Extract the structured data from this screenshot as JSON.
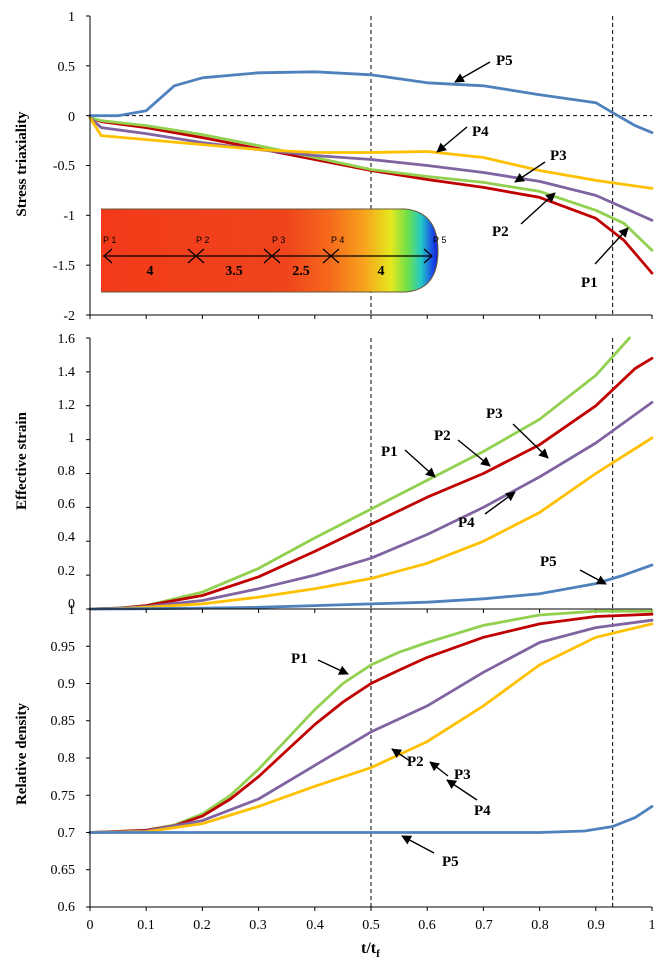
{
  "chart_data": [
    {
      "type": "line",
      "ylabel": "Stress triaxiality",
      "xlabel": "",
      "xlim": [
        0,
        1
      ],
      "ylim": [
        -2,
        1
      ],
      "yticks": [
        "1",
        "0.5",
        "0",
        "-0.5",
        "-1",
        "-1.5",
        "-2"
      ],
      "ref_lines": {
        "horizontal": [
          0
        ],
        "vertical": [
          0.5,
          0.93
        ]
      },
      "series": [
        {
          "name": "P1",
          "color": "#C00000",
          "x": [
            0,
            0.02,
            0.1,
            0.2,
            0.3,
            0.4,
            0.5,
            0.6,
            0.7,
            0.8,
            0.9,
            0.95,
            1.0
          ],
          "y": [
            -0.02,
            -0.06,
            -0.12,
            -0.22,
            -0.33,
            -0.44,
            -0.55,
            -0.64,
            -0.72,
            -0.82,
            -1.03,
            -1.25,
            -1.58
          ]
        },
        {
          "name": "P2",
          "color": "#92D050",
          "x": [
            0,
            0.02,
            0.1,
            0.2,
            0.3,
            0.4,
            0.5,
            0.6,
            0.7,
            0.8,
            0.9,
            0.95,
            1.0
          ],
          "y": [
            -0.02,
            -0.05,
            -0.1,
            -0.19,
            -0.3,
            -0.42,
            -0.54,
            -0.61,
            -0.67,
            -0.76,
            -0.95,
            -1.08,
            -1.35
          ]
        },
        {
          "name": "P3",
          "color": "#8064A2",
          "x": [
            0,
            0.02,
            0.1,
            0.2,
            0.3,
            0.4,
            0.5,
            0.6,
            0.7,
            0.8,
            0.9,
            1.0
          ],
          "y": [
            -0.02,
            -0.12,
            -0.18,
            -0.27,
            -0.34,
            -0.4,
            -0.44,
            -0.5,
            -0.57,
            -0.66,
            -0.8,
            -1.05
          ]
        },
        {
          "name": "P4",
          "color": "#FFC000",
          "x": [
            0,
            0.02,
            0.1,
            0.2,
            0.3,
            0.4,
            0.5,
            0.6,
            0.7,
            0.8,
            0.9,
            1.0
          ],
          "y": [
            -0.02,
            -0.2,
            -0.24,
            -0.29,
            -0.34,
            -0.37,
            -0.37,
            -0.36,
            -0.42,
            -0.55,
            -0.65,
            -0.73
          ]
        },
        {
          "name": "P5",
          "color": "#4F81BD",
          "x": [
            0,
            0.05,
            0.1,
            0.15,
            0.2,
            0.3,
            0.4,
            0.5,
            0.6,
            0.7,
            0.8,
            0.9,
            0.93,
            0.97,
            1.0
          ],
          "y": [
            0,
            0,
            0.05,
            0.3,
            0.38,
            0.43,
            0.44,
            0.41,
            0.33,
            0.3,
            0.21,
            0.13,
            0.03,
            -0.1,
            -0.17
          ]
        }
      ],
      "annotations": [
        "P5",
        "P4",
        "P3",
        "P2",
        "P1"
      ],
      "inset": {
        "points": [
          "P 1",
          "P 2",
          "P 3",
          "P 4",
          "P 5"
        ],
        "segments": [
          "4",
          "3.5",
          "2.5",
          "4"
        ]
      }
    },
    {
      "type": "line",
      "ylabel": "Effective strain",
      "xlabel": "",
      "xlim": [
        0,
        1
      ],
      "ylim": [
        0,
        1.6
      ],
      "yticks": [
        "1.6",
        "1.4",
        "1.2",
        "1",
        "0.8",
        "0.6",
        "0.4",
        "0.2",
        "0"
      ],
      "ref_lines": {
        "horizontal": [],
        "vertical": [
          0.5,
          0.93
        ]
      },
      "series": [
        {
          "name": "P2",
          "color": "#92D050",
          "x": [
            0,
            0.05,
            0.1,
            0.2,
            0.3,
            0.4,
            0.5,
            0.6,
            0.7,
            0.8,
            0.9,
            0.96
          ],
          "y": [
            0,
            0.005,
            0.02,
            0.1,
            0.24,
            0.42,
            0.59,
            0.76,
            0.93,
            1.12,
            1.38,
            1.6
          ]
        },
        {
          "name": "P1",
          "color": "#C00000",
          "x": [
            0,
            0.05,
            0.1,
            0.2,
            0.3,
            0.4,
            0.5,
            0.6,
            0.7,
            0.8,
            0.9,
            0.97,
            1.0
          ],
          "y": [
            0,
            0.005,
            0.02,
            0.08,
            0.19,
            0.34,
            0.5,
            0.66,
            0.8,
            0.97,
            1.2,
            1.42,
            1.48
          ]
        },
        {
          "name": "P3",
          "color": "#8064A2",
          "x": [
            0,
            0.05,
            0.1,
            0.2,
            0.3,
            0.4,
            0.5,
            0.6,
            0.7,
            0.8,
            0.9,
            1.0
          ],
          "y": [
            0,
            0.004,
            0.015,
            0.05,
            0.12,
            0.2,
            0.3,
            0.44,
            0.6,
            0.78,
            0.98,
            1.22
          ]
        },
        {
          "name": "P4",
          "color": "#FFC000",
          "x": [
            0,
            0.05,
            0.1,
            0.2,
            0.3,
            0.4,
            0.5,
            0.6,
            0.7,
            0.8,
            0.9,
            1.0
          ],
          "y": [
            0,
            0.003,
            0.01,
            0.03,
            0.07,
            0.12,
            0.18,
            0.27,
            0.4,
            0.57,
            0.8,
            1.01
          ]
        },
        {
          "name": "P5",
          "color": "#4F81BD",
          "x": [
            0,
            0.1,
            0.2,
            0.3,
            0.4,
            0.5,
            0.6,
            0.7,
            0.8,
            0.9,
            0.95,
            1.0
          ],
          "y": [
            0,
            0.002,
            0.005,
            0.01,
            0.02,
            0.03,
            0.04,
            0.06,
            0.09,
            0.15,
            0.2,
            0.26
          ]
        }
      ],
      "annotations": [
        "P1",
        "P2",
        "P3",
        "P4",
        "P5"
      ]
    },
    {
      "type": "line",
      "ylabel": "Relative density",
      "xlabel": "t/t",
      "xlabel_sub": "f",
      "xlim": [
        0,
        1
      ],
      "ylim": [
        0.6,
        1
      ],
      "xticks": [
        "0",
        "0.1",
        "0.2",
        "0.3",
        "0.4",
        "0.5",
        "0.6",
        "0.7",
        "0.8",
        "0.9",
        "1"
      ],
      "yticks": [
        "1",
        "0.95",
        "0.9",
        "0.85",
        "0.8",
        "0.75",
        "0.7",
        "0.65",
        "0.6"
      ],
      "ref_lines": {
        "horizontal": [
          1.0
        ],
        "vertical": [
          0.5,
          0.93
        ]
      },
      "series": [
        {
          "name": "P2",
          "color": "#92D050",
          "x": [
            0,
            0.1,
            0.15,
            0.2,
            0.25,
            0.3,
            0.35,
            0.4,
            0.45,
            0.5,
            0.55,
            0.6,
            0.7,
            0.8,
            0.9,
            1.0
          ],
          "y": [
            0.7,
            0.703,
            0.71,
            0.725,
            0.75,
            0.785,
            0.825,
            0.865,
            0.9,
            0.925,
            0.942,
            0.955,
            0.978,
            0.992,
            0.997,
            0.997
          ]
        },
        {
          "name": "P1",
          "color": "#C00000",
          "x": [
            0,
            0.1,
            0.15,
            0.2,
            0.25,
            0.3,
            0.35,
            0.4,
            0.45,
            0.5,
            0.55,
            0.6,
            0.7,
            0.8,
            0.9,
            1.0
          ],
          "y": [
            0.7,
            0.703,
            0.709,
            0.722,
            0.745,
            0.775,
            0.81,
            0.845,
            0.875,
            0.9,
            0.918,
            0.935,
            0.962,
            0.98,
            0.99,
            0.993
          ]
        },
        {
          "name": "P3",
          "color": "#8064A2",
          "x": [
            0,
            0.1,
            0.2,
            0.3,
            0.4,
            0.5,
            0.6,
            0.7,
            0.8,
            0.9,
            1.0
          ],
          "y": [
            0.7,
            0.702,
            0.716,
            0.745,
            0.79,
            0.835,
            0.87,
            0.915,
            0.955,
            0.975,
            0.985
          ]
        },
        {
          "name": "P4",
          "color": "#FFC000",
          "x": [
            0,
            0.1,
            0.2,
            0.3,
            0.4,
            0.5,
            0.6,
            0.7,
            0.8,
            0.9,
            1.0
          ],
          "y": [
            0.7,
            0.701,
            0.712,
            0.735,
            0.762,
            0.787,
            0.822,
            0.87,
            0.925,
            0.962,
            0.98
          ]
        },
        {
          "name": "P5",
          "color": "#4F81BD",
          "x": [
            0,
            0.2,
            0.4,
            0.6,
            0.8,
            0.88,
            0.93,
            0.97,
            1.0
          ],
          "y": [
            0.7,
            0.7,
            0.7,
            0.7,
            0.7,
            0.702,
            0.708,
            0.72,
            0.735
          ]
        }
      ],
      "annotations": [
        "P1",
        "P2",
        "P3",
        "P4",
        "P5"
      ]
    }
  ]
}
